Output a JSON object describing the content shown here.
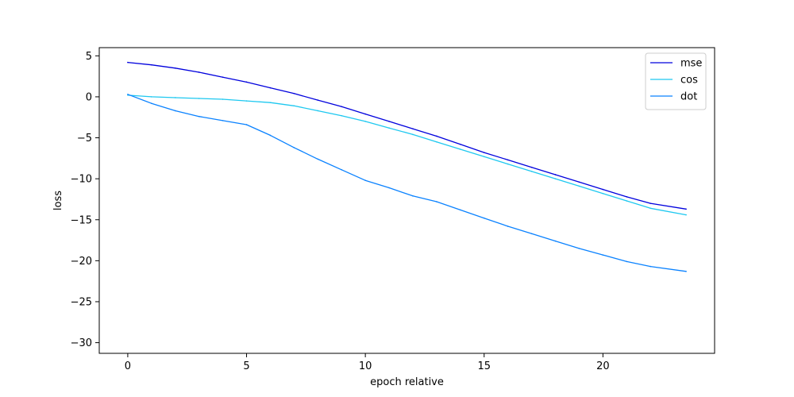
{
  "chart_data": {
    "type": "line",
    "title": "",
    "xlabel": "epoch relative",
    "ylabel": "loss",
    "xlim": [
      -1.2,
      24.7
    ],
    "ylim": [
      -31.3,
      6.0
    ],
    "xticks": [
      0,
      5,
      10,
      15,
      20
    ],
    "yticks": [
      5,
      0,
      -5,
      -10,
      -15,
      -20,
      -25,
      -30
    ],
    "xtick_labels": [
      "0",
      "5",
      "10",
      "15",
      "20"
    ],
    "ytick_labels": [
      "5",
      "0",
      "−5",
      "−10",
      "−15",
      "−20",
      "−25",
      "−30"
    ],
    "grid": false,
    "legend_position": "top-right",
    "series": [
      {
        "name": "mse",
        "color": "#0000dd",
        "x": [
          0,
          1,
          2,
          3,
          4,
          5,
          6,
          7,
          8,
          9,
          10,
          11,
          12,
          13,
          14,
          15,
          16,
          17,
          18,
          19,
          20,
          21,
          22,
          23.5
        ],
        "y": [
          4.2,
          3.9,
          3.5,
          3.0,
          2.4,
          1.8,
          1.1,
          0.4,
          -0.4,
          -1.2,
          -2.1,
          -3.0,
          -3.9,
          -4.8,
          -5.8,
          -6.8,
          -7.7,
          -8.6,
          -9.5,
          -10.4,
          -11.3,
          -12.2,
          -13.0,
          -13.7
        ]
      },
      {
        "name": "cos",
        "color": "#1ec8f0",
        "x": [
          0,
          1,
          2,
          3,
          4,
          5,
          6,
          7,
          8,
          9,
          10,
          11,
          12,
          13,
          14,
          15,
          16,
          17,
          18,
          19,
          20,
          21,
          22,
          23.5
        ],
        "y": [
          0.2,
          0.0,
          -0.1,
          -0.2,
          -0.3,
          -0.5,
          -0.7,
          -1.1,
          -1.7,
          -2.3,
          -3.0,
          -3.8,
          -4.6,
          -5.5,
          -6.4,
          -7.3,
          -8.2,
          -9.1,
          -10.0,
          -10.9,
          -11.8,
          -12.7,
          -13.6,
          -14.4
        ]
      },
      {
        "name": "dot",
        "color": "#0a82ff",
        "x": [
          0,
          1,
          2,
          3,
          4,
          5,
          6,
          7,
          8,
          9,
          10,
          11,
          12,
          13,
          14,
          15,
          16,
          17,
          18,
          19,
          20,
          21,
          22,
          23.5
        ],
        "y": [
          0.3,
          -0.8,
          -1.7,
          -2.4,
          -2.9,
          -3.4,
          -4.7,
          -6.2,
          -7.6,
          -8.9,
          -10.2,
          -11.1,
          -12.1,
          -12.8,
          -13.8,
          -14.8,
          -15.8,
          -16.7,
          -17.6,
          -18.5,
          -19.3,
          -20.1,
          -20.7,
          -21.3
        ]
      }
    ]
  }
}
